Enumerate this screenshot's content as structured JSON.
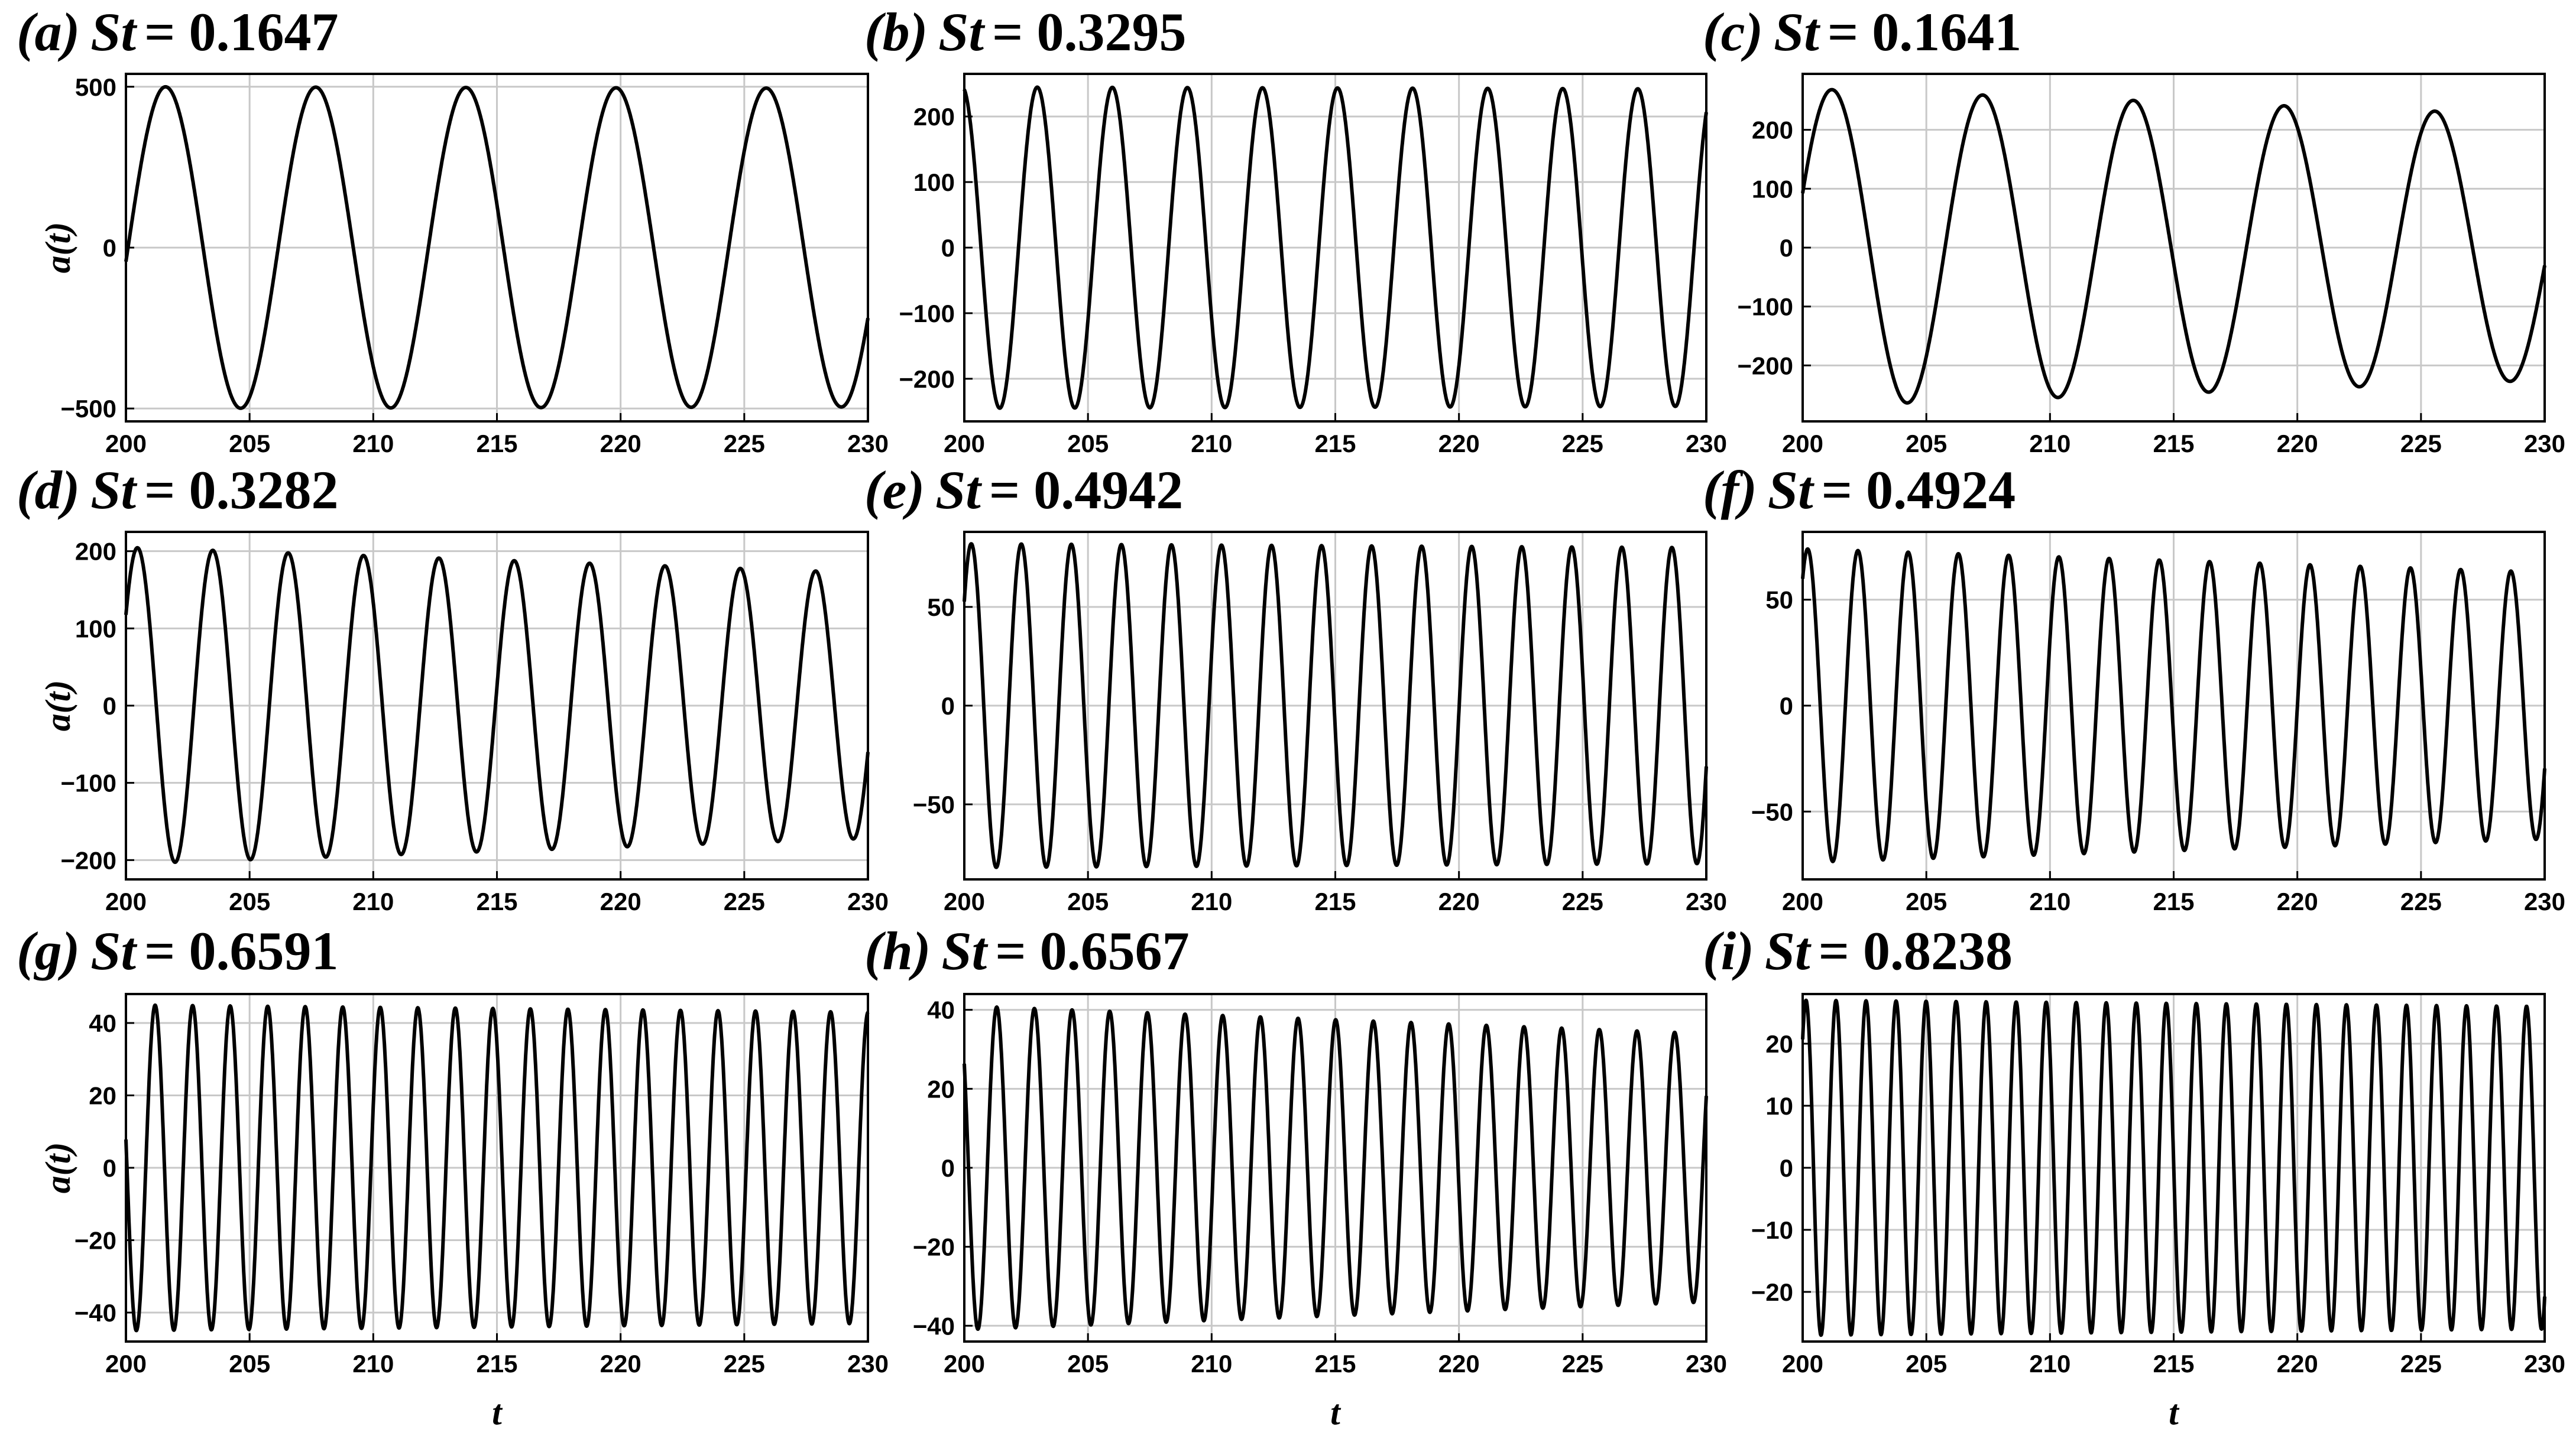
{
  "chart_data": [
    {
      "id": "a",
      "type": "line",
      "title_prefix": "(a)",
      "title_var": "St",
      "title_value": "= 0.1647",
      "xlabel": "",
      "ylabel": "a(t)",
      "xlim": [
        200,
        230
      ],
      "xticks": [
        200,
        205,
        210,
        215,
        220,
        225,
        230
      ],
      "ylim": [
        -540,
        540
      ],
      "yticks": [
        500,
        0,
        -500
      ],
      "ytick_labels": [
        "500",
        "0",
        "−500"
      ],
      "grid": true,
      "series": [
        {
          "St": 0.1647,
          "amplitude_start": 500,
          "amplitude_end": 495,
          "phase_deg": 95,
          "color": "#000000"
        }
      ]
    },
    {
      "id": "b",
      "type": "line",
      "title_prefix": "(b)",
      "title_var": "St",
      "title_value": "= 0.3295",
      "xlabel": "",
      "ylabel": "",
      "xlim": [
        200,
        230
      ],
      "xticks": [
        200,
        205,
        210,
        215,
        220,
        225,
        230
      ],
      "ylim": [
        -265,
        265
      ],
      "yticks": [
        200,
        100,
        0,
        -100,
        -200
      ],
      "ytick_labels": [
        "200",
        "100",
        "0",
        "−100",
        "−200"
      ],
      "grid": true,
      "series": [
        {
          "St": 0.3295,
          "amplitude_start": 245,
          "amplitude_end": 242,
          "phase_deg": -10,
          "color": "#000000"
        }
      ]
    },
    {
      "id": "c",
      "type": "line",
      "title_prefix": "(c)",
      "title_var": "St",
      "title_value": "= 0.1641",
      "xlabel": "",
      "ylabel": "",
      "xlim": [
        200,
        230
      ],
      "xticks": [
        200,
        205,
        210,
        215,
        220,
        225,
        230
      ],
      "ylim": [
        -295,
        295
      ],
      "yticks": [
        200,
        100,
        0,
        -100,
        -200
      ],
      "ytick_labels": [
        "200",
        "100",
        "0",
        "−100",
        "−200"
      ],
      "grid": true,
      "series": [
        {
          "St": 0.1641,
          "amplitude_start": 270,
          "amplitude_end": 225,
          "phase_deg": 70,
          "color": "#000000"
        }
      ]
    },
    {
      "id": "d",
      "type": "line",
      "title_prefix": "(d)",
      "title_var": "St",
      "title_value": "= 0.3282",
      "xlabel": "",
      "ylabel": "a(t)",
      "xlim": [
        200,
        230
      ],
      "xticks": [
        200,
        205,
        210,
        215,
        220,
        225,
        230
      ],
      "ylim": [
        -225,
        225
      ],
      "yticks": [
        200,
        100,
        0,
        -100,
        -200
      ],
      "ytick_labels": [
        "200",
        "100",
        "0",
        "−100",
        "−200"
      ],
      "grid": true,
      "series": [
        {
          "St": 0.3282,
          "amplitude_start": 205,
          "amplitude_end": 172,
          "phase_deg": 55,
          "color": "#000000"
        }
      ]
    },
    {
      "id": "e",
      "type": "line",
      "title_prefix": "(e)",
      "title_var": "St",
      "title_value": "= 0.4942",
      "xlabel": "",
      "ylabel": "",
      "xlim": [
        200,
        230
      ],
      "xticks": [
        200,
        205,
        210,
        215,
        220,
        225,
        230
      ],
      "ylim": [
        -88,
        88
      ],
      "yticks": [
        50,
        0,
        -50
      ],
      "ytick_labels": [
        "50",
        "0",
        "−50"
      ],
      "grid": true,
      "series": [
        {
          "St": 0.4942,
          "amplitude_start": 82,
          "amplitude_end": 80,
          "phase_deg": 50,
          "color": "#000000"
        }
      ]
    },
    {
      "id": "f",
      "type": "line",
      "title_prefix": "(f)",
      "title_var": "St",
      "title_value": "= 0.4924",
      "xlabel": "",
      "ylabel": "",
      "xlim": [
        200,
        230
      ],
      "xticks": [
        200,
        205,
        210,
        215,
        220,
        225,
        230
      ],
      "ylim": [
        -82,
        82
      ],
      "yticks": [
        50,
        0,
        -50
      ],
      "ytick_labels": [
        "50",
        "0",
        "−50"
      ],
      "grid": true,
      "series": [
        {
          "St": 0.4924,
          "amplitude_start": 74,
          "amplitude_end": 63,
          "phase_deg": 36,
          "color": "#000000"
        }
      ]
    },
    {
      "id": "g",
      "type": "line",
      "title_prefix": "(g)",
      "title_var": "St",
      "title_value": "= 0.6591",
      "xlabel": "t",
      "ylabel": "a(t)",
      "xlim": [
        200,
        230
      ],
      "xticks": [
        200,
        205,
        210,
        215,
        220,
        225,
        230
      ],
      "ylim": [
        -48,
        48
      ],
      "yticks": [
        40,
        20,
        0,
        -20,
        -40
      ],
      "ytick_labels": [
        "40",
        "20",
        "0",
        "−20",
        "−40"
      ],
      "grid": true,
      "series": [
        {
          "St": 0.6591,
          "amplitude_start": 45,
          "amplitude_end": 43,
          "phase_deg": -80,
          "color": "#000000"
        }
      ]
    },
    {
      "id": "h",
      "type": "line",
      "title_prefix": "(h)",
      "title_var": "St",
      "title_value": "= 0.6567",
      "xlabel": "t",
      "ylabel": "",
      "xlim": [
        200,
        230
      ],
      "xticks": [
        200,
        205,
        210,
        215,
        220,
        225,
        230
      ],
      "ylim": [
        -44,
        44
      ],
      "yticks": [
        40,
        20,
        0,
        -20,
        -40
      ],
      "ytick_labels": [
        "40",
        "20",
        "0",
        "−20",
        "−40"
      ],
      "grid": true,
      "series": [
        {
          "St": 0.6567,
          "amplitude_start": 41,
          "amplitude_end": 34,
          "phase_deg": -50,
          "color": "#000000"
        }
      ]
    },
    {
      "id": "i",
      "type": "line",
      "title_prefix": "(i)",
      "title_var": "St",
      "title_value": "= 0.8238",
      "xlabel": "t",
      "ylabel": "",
      "xlim": [
        200,
        230
      ],
      "xticks": [
        200,
        205,
        210,
        215,
        220,
        225,
        230
      ],
      "ylim": [
        -28,
        28
      ],
      "yticks": [
        20,
        10,
        0,
        -10,
        -20
      ],
      "ytick_labels": [
        "20",
        "10",
        "0",
        "−10",
        "−20"
      ],
      "grid": true,
      "series": [
        {
          "St": 0.8238,
          "amplitude_start": 27,
          "amplitude_end": 26,
          "phase_deg": 40,
          "color": "#000000"
        }
      ]
    }
  ]
}
